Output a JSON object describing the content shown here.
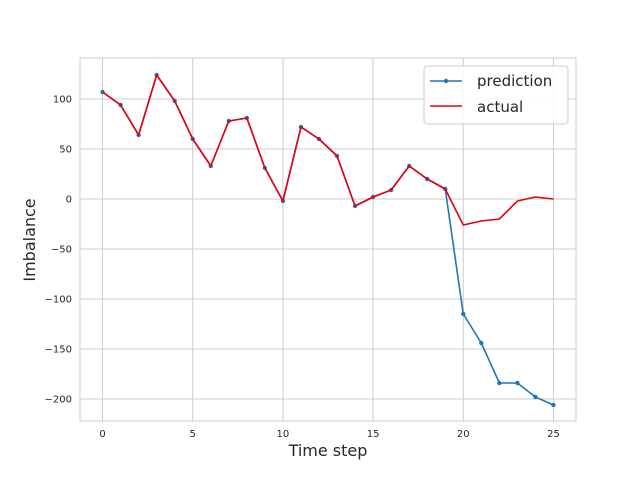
{
  "chart_data": {
    "type": "line",
    "title": "",
    "xlabel": "Time step",
    "ylabel": "Imbalance",
    "xlim": [
      -1.25,
      26.25
    ],
    "ylim": [
      -222,
      141
    ],
    "x_ticks": [
      0,
      5,
      10,
      15,
      20,
      25
    ],
    "y_ticks": [
      -200,
      -150,
      -100,
      -50,
      0,
      50,
      100
    ],
    "grid": true,
    "legend_position": "top-right",
    "x": [
      0,
      1,
      2,
      3,
      4,
      5,
      6,
      7,
      8,
      9,
      10,
      11,
      12,
      13,
      14,
      15,
      16,
      17,
      18,
      19,
      20,
      21,
      22,
      23,
      24,
      25
    ],
    "series": [
      {
        "name": "prediction",
        "color": "#1f77b4",
        "marker": "dot",
        "values": [
          107,
          94,
          64,
          124,
          98,
          60,
          33,
          78,
          81,
          31,
          -2,
          72,
          60,
          43,
          -7,
          2,
          9,
          33,
          20,
          10,
          -115,
          -144,
          -184,
          -184,
          -198,
          -206
        ]
      },
      {
        "name": "actual",
        "color": "#e8000b",
        "marker": "none",
        "values": [
          107,
          94,
          64,
          124,
          98,
          60,
          33,
          78,
          81,
          31,
          -2,
          72,
          60,
          43,
          -7,
          2,
          9,
          33,
          20,
          10,
          -26,
          -22,
          -20,
          -2,
          2,
          0
        ]
      }
    ]
  }
}
